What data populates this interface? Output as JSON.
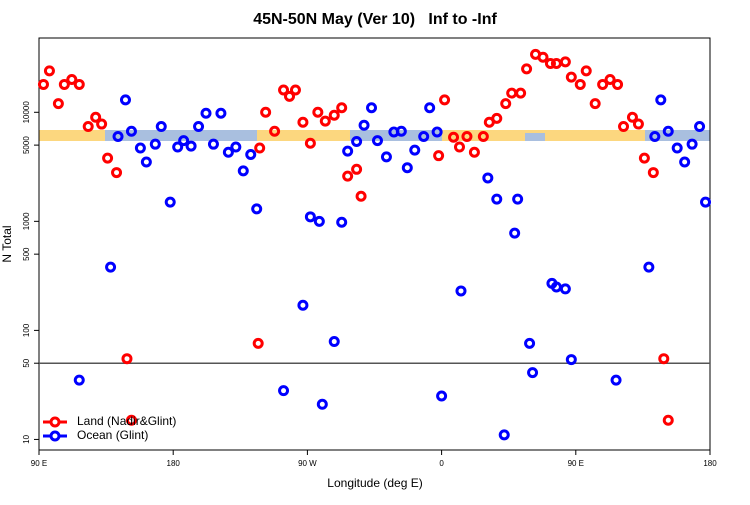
{
  "chart_data": {
    "type": "scatter",
    "title": "45N-50N May (Ver 10)   Inf to -Inf",
    "x_label": "Longitude (deg E)",
    "y_label": "N Total",
    "log_y": true,
    "xlim": [
      90,
      540
    ],
    "ylim": [
      8,
      48000
    ],
    "xticks": [
      {
        "value": 90,
        "label": "90 E"
      },
      180,
      {
        "value": 270,
        "label": "90 W"
      },
      {
        "value": 360,
        "label": "0"
      },
      {
        "value": 450,
        "label": "90 E"
      },
      {
        "value": 540,
        "label": "180"
      }
    ],
    "yticks": [
      10,
      50,
      100,
      500,
      1000,
      5000,
      10000
    ],
    "hline": 50,
    "legend": "bottom-left",
    "series": [
      {
        "name": "Land (Nadir&Glint)",
        "color": "#ff0000",
        "x": [
          93,
          97,
          103,
          107,
          112,
          117,
          123,
          128,
          132,
          136,
          142,
          149,
          152,
          237,
          238,
          242,
          248,
          254,
          258,
          262,
          267,
          272,
          277,
          282,
          288,
          293,
          297,
          303,
          306,
          358,
          362,
          368,
          372,
          377,
          382,
          388,
          392,
          397,
          403,
          407,
          413,
          417,
          423,
          428,
          433,
          437,
          443,
          447,
          453,
          457,
          463,
          468,
          473,
          478,
          482,
          488,
          492,
          496,
          502,
          509,
          512
        ],
        "y": [
          18000,
          24000,
          12000,
          18000,
          20000,
          18000,
          7400,
          9000,
          7800,
          3800,
          2800,
          55,
          15,
          76,
          4700,
          10000,
          6700,
          16000,
          14000,
          16000,
          8100,
          5200,
          10000,
          8300,
          9400,
          11000,
          2600,
          3000,
          1700,
          4000,
          13000,
          5900,
          4800,
          6000,
          4300,
          6000,
          8100,
          8800,
          12000,
          15000,
          15000,
          25000,
          34000,
          32000,
          28000,
          28000,
          29000,
          21000,
          18000,
          24000,
          12000,
          18000,
          20000,
          18000,
          7400,
          9000,
          7800,
          3800,
          2800,
          55,
          15
        ]
      },
      {
        "name": "Ocean (Glint)",
        "color": "#0000ff",
        "x": [
          117,
          138,
          143,
          148,
          152,
          158,
          162,
          168,
          172,
          178,
          183,
          187,
          192,
          197,
          202,
          207,
          212,
          217,
          222,
          227,
          232,
          236,
          254,
          267,
          272,
          278,
          280,
          288,
          293,
          297,
          303,
          308,
          313,
          317,
          323,
          328,
          333,
          337,
          342,
          348,
          352,
          357,
          360,
          373,
          391,
          397,
          402,
          409,
          411,
          419,
          421,
          434,
          437,
          443,
          447,
          477,
          499,
          503,
          507,
          512,
          518,
          523,
          528,
          533,
          537
        ],
        "y": [
          35,
          380,
          6000,
          13000,
          6700,
          4700,
          3500,
          5100,
          7400,
          1500,
          4800,
          5500,
          4900,
          7400,
          9800,
          5100,
          9800,
          4300,
          4800,
          2900,
          4100,
          1300,
          28,
          170,
          1100,
          1000,
          21,
          79,
          980,
          4400,
          5400,
          7600,
          11000,
          5500,
          3900,
          6600,
          6700,
          3100,
          4500,
          6000,
          11000,
          6600,
          25,
          230,
          2500,
          1600,
          11,
          780,
          1600,
          76,
          41,
          270,
          250,
          240,
          54,
          35,
          380,
          6000,
          13000,
          6700,
          4700,
          3500,
          5100,
          7400,
          1500
        ]
      }
    ]
  }
}
